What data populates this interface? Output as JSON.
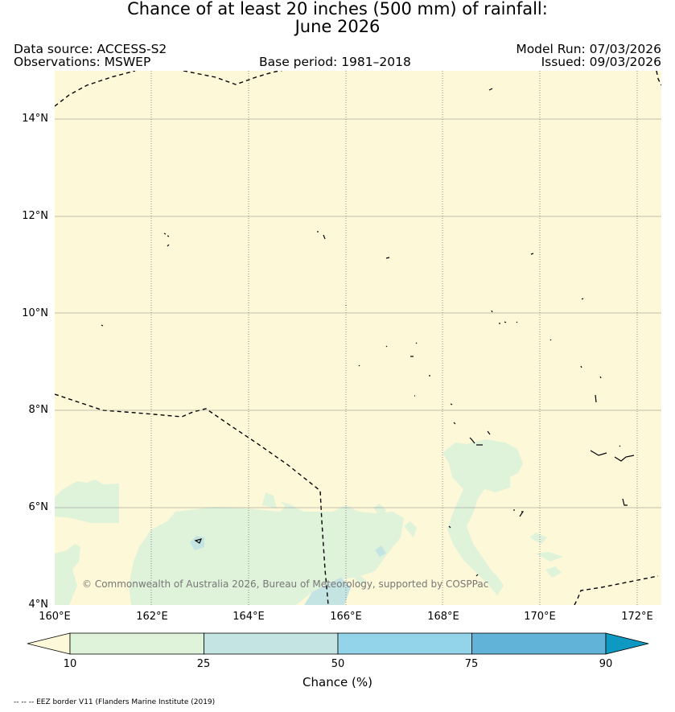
{
  "title": {
    "line1": "Chance of at least 20 inches (500  mm) of rainfall:",
    "line2": "June 2026"
  },
  "header": {
    "data_source": "Data source: ACCESS-S2",
    "observations": "Observations: MSWEP",
    "base_period": "Base period: 1981–2018",
    "model_run": "Model Run: 07/03/2026",
    "issued": "Issued: 09/03/2026"
  },
  "map": {
    "lat_labels": [
      "14°N",
      "12°N",
      "10°N",
      "8°N",
      "6°N",
      "4°N"
    ],
    "lon_labels": [
      "160°E",
      "162°E",
      "164°E",
      "166°E",
      "168°E",
      "170°E",
      "172°E"
    ],
    "copyright": "© Commonwealth of Australia 2026, Bureau of Meteorology, supported by COSPPac",
    "colors": {
      "background": "#fdf8d8",
      "band_10_25": "#dff2da",
      "band_25_50": "#c4e4e4",
      "band_50_75": "#93d4ea",
      "band_75_90": "#61b3d7",
      "band_90_plus": "#0e99c2"
    }
  },
  "colorbar": {
    "ticks": [
      "10",
      "25",
      "50",
      "75",
      "90"
    ],
    "label": "Chance (%)"
  },
  "footer": {
    "legend": "-- -- -- EEZ border V11 (Flanders Marine Institute (2019)"
  }
}
